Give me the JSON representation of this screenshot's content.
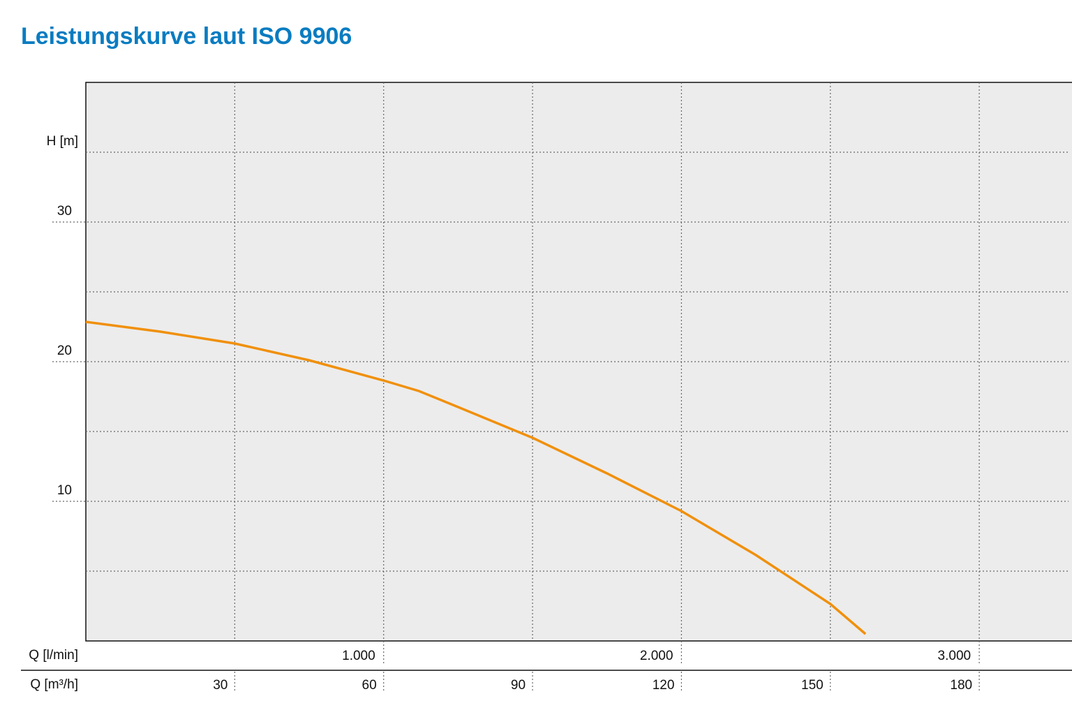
{
  "chart_data": {
    "type": "line",
    "title": "Leistungskurve laut ISO 9906",
    "ylabel": "H [m]",
    "xlabel": "Q [l/min]",
    "x2label": "Q [m³/h]",
    "xlim": [
      0,
      3300
    ],
    "xticks": [
      {
        "value": 1000,
        "label": "1.000"
      },
      {
        "value": 2000,
        "label": "2.000"
      },
      {
        "value": 3000,
        "label": "3.000"
      }
    ],
    "x2lim": [
      0,
      198
    ],
    "x2ticks": [
      30,
      60,
      90,
      120,
      150,
      180
    ],
    "ylim": [
      0,
      40
    ],
    "yticks": [
      10,
      20,
      30
    ],
    "yminorticks": [
      5,
      15,
      25,
      35
    ],
    "grid": true,
    "series": [
      {
        "color": "#f0900c",
        "x": [
          0,
          250,
          500,
          750,
          1000,
          1118,
          1250,
          1500,
          1750,
          2000,
          2250,
          2500,
          2618
        ],
        "values": [
          22.85,
          22.15,
          21.3,
          20.1,
          18.65,
          17.9,
          16.75,
          14.55,
          12.0,
          9.3,
          6.15,
          2.65,
          0.5
        ]
      }
    ]
  }
}
